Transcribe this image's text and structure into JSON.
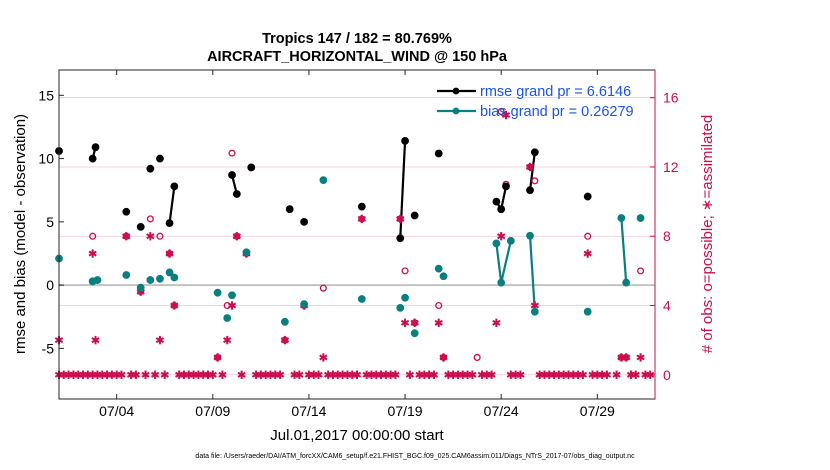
{
  "chart_data": {
    "type": "scatter",
    "title": "Tropics 147 / 182 = 80.769%",
    "subtitle": "AIRCRAFT_HORIZONTAL_WIND @ 150 hPa",
    "xlabel": "Jul.01,2017 00:00:00 start",
    "ylabel": "rmse and bias (model - observation)",
    "y2label": "# of obs: o=possible; ∗=assimilated",
    "footnote": "data file: /Users/raeder/DAI/ATM_forcXX/CAM6_setup/f.e21.FHIST_BGC.f09_025.CAM6assim.011/Diags_NTrS_2017-07/obs_diag_output.nc",
    "xlim_days": [
      1,
      32
    ],
    "ylim": [
      -9,
      17
    ],
    "y2lim": [
      -1.4,
      17.6
    ],
    "x_ticks": [
      {
        "day": 4,
        "label": "07/04"
      },
      {
        "day": 9,
        "label": "07/09"
      },
      {
        "day": 14,
        "label": "07/14"
      },
      {
        "day": 19,
        "label": "07/19"
      },
      {
        "day": 24,
        "label": "07/24"
      },
      {
        "day": 29,
        "label": "07/29"
      }
    ],
    "y_ticks": [
      {
        "value": -5,
        "label": "-5"
      },
      {
        "value": 0,
        "label": "0"
      },
      {
        "value": 5,
        "label": "5"
      },
      {
        "value": 10,
        "label": "10"
      },
      {
        "value": 15,
        "label": "15"
      }
    ],
    "y2_ticks": [
      {
        "value": 0,
        "label": "0"
      },
      {
        "value": 4,
        "label": "4"
      },
      {
        "value": 8,
        "label": "8"
      },
      {
        "value": 12,
        "label": "12"
      },
      {
        "value": 16,
        "label": "16"
      }
    ],
    "series": [
      {
        "name": "rmse grand pr = 6.6146",
        "color": "#000000",
        "points": [
          [
            1.0,
            10.6
          ],
          [
            2.75,
            10.0
          ],
          [
            2.9,
            10.9
          ],
          [
            4.5,
            5.8
          ],
          [
            5.25,
            4.6
          ],
          [
            5.75,
            9.2
          ],
          [
            6.25,
            10.0
          ],
          [
            6.75,
            4.9
          ],
          [
            7.0,
            7.8
          ],
          [
            10.0,
            8.7
          ],
          [
            10.25,
            7.2
          ],
          [
            11.0,
            9.3
          ],
          [
            13.0,
            6.0
          ],
          [
            13.75,
            5.0
          ],
          [
            16.75,
            6.2
          ],
          [
            18.75,
            3.7
          ],
          [
            19.0,
            11.4
          ],
          [
            19.5,
            5.5
          ],
          [
            20.75,
            10.4
          ],
          [
            23.75,
            6.6
          ],
          [
            24.0,
            6.0
          ],
          [
            24.25,
            7.8
          ],
          [
            25.5,
            7.5
          ],
          [
            25.75,
            10.5
          ],
          [
            28.5,
            7.0
          ]
        ],
        "segments": [
          [
            [
              2.75,
              10.0
            ],
            [
              2.9,
              10.9
            ]
          ],
          [
            [
              6.75,
              4.9
            ],
            [
              7.0,
              7.8
            ]
          ],
          [
            [
              10.0,
              8.7
            ],
            [
              10.25,
              7.2
            ]
          ],
          [
            [
              18.75,
              3.7
            ],
            [
              19.0,
              11.4
            ]
          ],
          [
            [
              23.75,
              6.6
            ],
            [
              24.0,
              6.0
            ],
            [
              24.25,
              7.8
            ]
          ],
          [
            [
              25.5,
              7.5
            ],
            [
              25.75,
              10.5
            ]
          ]
        ]
      },
      {
        "name": "bias grand pr = 0.26279",
        "color": "#0a7f7f",
        "points": [
          [
            1.0,
            2.1
          ],
          [
            2.75,
            0.3
          ],
          [
            3.0,
            0.4
          ],
          [
            4.5,
            0.8
          ],
          [
            5.25,
            -0.2
          ],
          [
            5.75,
            0.4
          ],
          [
            6.25,
            0.5
          ],
          [
            6.75,
            1.0
          ],
          [
            7.0,
            0.6
          ],
          [
            9.25,
            -0.6
          ],
          [
            9.75,
            -2.6
          ],
          [
            10.0,
            -0.8
          ],
          [
            10.75,
            2.6
          ],
          [
            12.75,
            -2.9
          ],
          [
            13.75,
            -1.5
          ],
          [
            14.75,
            8.3
          ],
          [
            16.75,
            -1.1
          ],
          [
            18.75,
            -1.8
          ],
          [
            19.0,
            -1.0
          ],
          [
            19.5,
            -3.8
          ],
          [
            20.75,
            1.3
          ],
          [
            21.0,
            0.7
          ],
          [
            23.75,
            3.3
          ],
          [
            24.0,
            0.2
          ],
          [
            24.5,
            3.5
          ],
          [
            25.5,
            3.9
          ],
          [
            25.75,
            -2.1
          ],
          [
            28.5,
            -2.1
          ],
          [
            30.25,
            5.3
          ],
          [
            30.5,
            0.2
          ],
          [
            31.25,
            5.3
          ]
        ],
        "segments": [
          [
            [
              23.75,
              3.3
            ],
            [
              24.0,
              0.2
            ],
            [
              24.5,
              3.5
            ]
          ],
          [
            [
              25.5,
              3.9
            ],
            [
              25.75,
              -2.1
            ]
          ],
          [
            [
              30.25,
              5.3
            ],
            [
              30.5,
              0.2
            ]
          ]
        ]
      },
      {
        "name": "# obs possible",
        "color": "#cc0c4f",
        "marker": "circle",
        "points": [
          [
            2.75,
            8.0
          ],
          [
            4.5,
            8.0
          ],
          [
            5.25,
            4.8
          ],
          [
            5.75,
            9.0
          ],
          [
            6.25,
            8.0
          ],
          [
            6.75,
            7.0
          ],
          [
            7.0,
            4.0
          ],
          [
            9.25,
            1.0
          ],
          [
            9.75,
            4.0
          ],
          [
            10.0,
            12.8
          ],
          [
            10.25,
            8.0
          ],
          [
            10.75,
            7.0
          ],
          [
            12.75,
            2.0
          ],
          [
            13.75,
            4.0
          ],
          [
            14.75,
            5.0
          ],
          [
            16.75,
            9.0
          ],
          [
            18.75,
            9.0
          ],
          [
            19.0,
            6.0
          ],
          [
            19.5,
            3.0
          ],
          [
            20.75,
            4.0
          ],
          [
            21.0,
            1.0
          ],
          [
            22.75,
            1.0
          ],
          [
            24.0,
            15.2
          ],
          [
            24.25,
            11.0
          ],
          [
            25.5,
            12.0
          ],
          [
            25.75,
            11.2
          ],
          [
            28.5,
            8.0
          ],
          [
            30.25,
            1.0
          ],
          [
            30.5,
            1.0
          ],
          [
            31.25,
            6.0
          ]
        ]
      },
      {
        "name": "# obs assimilated",
        "color": "#cc0c4f",
        "marker": "asterisk",
        "points": [
          [
            1.0,
            2.0
          ],
          [
            2.75,
            7.0
          ],
          [
            2.9,
            2.0
          ],
          [
            4.5,
            8.0
          ],
          [
            5.25,
            4.8
          ],
          [
            5.75,
            8.0
          ],
          [
            6.25,
            2.0
          ],
          [
            6.75,
            7.0
          ],
          [
            7.0,
            4.0
          ],
          [
            9.25,
            1.0
          ],
          [
            9.75,
            2.0
          ],
          [
            10.0,
            4.0
          ],
          [
            10.25,
            8.0
          ],
          [
            10.75,
            7.0
          ],
          [
            12.75,
            2.0
          ],
          [
            13.75,
            4.0
          ],
          [
            14.75,
            1.0
          ],
          [
            16.75,
            9.0
          ],
          [
            18.75,
            9.0
          ],
          [
            19.0,
            3.0
          ],
          [
            19.5,
            3.0
          ],
          [
            20.75,
            3.0
          ],
          [
            21.0,
            1.0
          ],
          [
            23.75,
            3.0
          ],
          [
            24.0,
            8.0
          ],
          [
            24.25,
            15.0
          ],
          [
            25.5,
            12.0
          ],
          [
            25.75,
            4.0
          ],
          [
            28.5,
            7.0
          ],
          [
            30.25,
            1.0
          ],
          [
            30.5,
            1.0
          ],
          [
            31.25,
            1.0
          ]
        ]
      }
    ],
    "zero_obs_days": [
      1.0,
      1.25,
      1.5,
      1.75,
      2.0,
      2.25,
      2.5,
      2.75,
      3.0,
      3.25,
      3.5,
      3.75,
      4.0,
      4.25,
      4.75,
      5.0,
      5.5,
      6.0,
      6.5,
      7.25,
      7.5,
      7.75,
      8.0,
      8.25,
      8.5,
      8.75,
      9.0,
      9.5,
      10.5,
      11.25,
      11.5,
      11.75,
      12.0,
      12.25,
      12.5,
      13.25,
      13.5,
      14.0,
      14.25,
      14.5,
      15.0,
      15.25,
      15.5,
      15.75,
      16.0,
      16.25,
      16.5,
      17.0,
      17.25,
      17.5,
      17.75,
      18.0,
      18.25,
      18.5,
      19.25,
      19.75,
      20.0,
      20.25,
      20.5,
      21.25,
      21.5,
      21.75,
      22.0,
      22.25,
      22.5,
      23.0,
      23.25,
      23.5,
      24.5,
      24.75,
      25.0,
      26.0,
      26.25,
      26.5,
      26.75,
      27.0,
      27.25,
      27.5,
      27.75,
      28.0,
      28.25,
      28.75,
      29.0,
      29.25,
      29.5,
      30.0,
      30.75,
      31.0,
      31.5,
      31.75
    ]
  }
}
